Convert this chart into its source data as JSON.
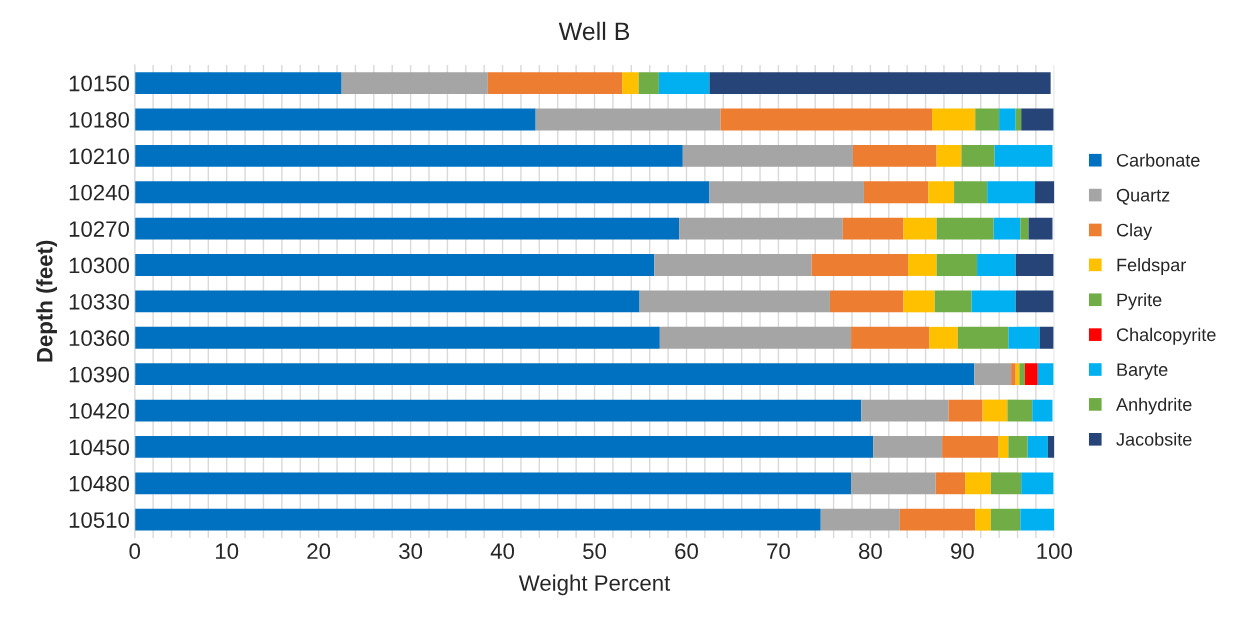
{
  "chart_data": {
    "type": "bar",
    "orientation": "horizontal",
    "stacked": true,
    "title": "Well B",
    "xlabel": "Weight Percent",
    "ylabel": "Depth (feet)",
    "categories": [
      "10150",
      "10180",
      "10210",
      "10240",
      "10270",
      "10300",
      "10330",
      "10360",
      "10390",
      "10420",
      "10450",
      "10480",
      "10510"
    ],
    "series": [
      {
        "name": "Carbonate",
        "color": "#0070c0",
        "values": [
          22.5,
          43.6,
          59.6,
          62.5,
          59.2,
          56.5,
          54.9,
          57.1,
          91.3,
          79.0,
          80.3,
          77.9,
          74.6
        ]
      },
      {
        "name": "Quartz",
        "color": "#a5a5a5",
        "values": [
          15.9,
          20.1,
          18.5,
          16.8,
          17.8,
          17.1,
          20.7,
          20.8,
          4.0,
          9.5,
          7.5,
          9.2,
          8.6
        ]
      },
      {
        "name": "Clay",
        "color": "#ed7d31",
        "values": [
          14.6,
          23.0,
          9.1,
          7.0,
          6.6,
          10.5,
          8.0,
          8.5,
          0.5,
          3.7,
          6.1,
          3.2,
          8.2
        ]
      },
      {
        "name": "Feldspar",
        "color": "#ffc000",
        "values": [
          1.8,
          4.7,
          2.7,
          2.8,
          3.6,
          3.1,
          3.4,
          3.1,
          0.4,
          2.7,
          1.1,
          2.8,
          1.7
        ]
      },
      {
        "name": "Pyrite",
        "color": "#70ad47",
        "values": [
          2.2,
          2.6,
          3.6,
          3.6,
          6.2,
          4.4,
          4.0,
          5.5,
          0.6,
          2.7,
          2.1,
          3.3,
          3.2
        ]
      },
      {
        "name": "Chalcopyrite",
        "color": "#ff0000",
        "values": [
          null,
          null,
          null,
          null,
          null,
          null,
          null,
          null,
          1.4,
          null,
          null,
          null,
          null
        ]
      },
      {
        "name": "Baryte",
        "color": "#00b0f0",
        "values": [
          5.5,
          1.8,
          6.3,
          5.2,
          2.9,
          4.2,
          4.8,
          3.4,
          1.7,
          2.2,
          2.2,
          3.5,
          3.7
        ]
      },
      {
        "name": "Anhydrite",
        "color": "#6fac46",
        "values": [
          null,
          0.6,
          null,
          null,
          0.9,
          null,
          null,
          null,
          null,
          null,
          null,
          null,
          null
        ]
      },
      {
        "name": "Jacobsite",
        "color": "#264478",
        "values": [
          37.1,
          3.5,
          null,
          2.1,
          2.6,
          4.1,
          4.1,
          1.5,
          null,
          null,
          0.7,
          null,
          null
        ]
      }
    ],
    "xlim": [
      0,
      100
    ],
    "xticks": [
      0,
      {
        "value": 2,
        "label": null
      },
      {
        "value": 4,
        "label": null
      },
      {
        "value": 6,
        "label": null
      },
      {
        "value": 8,
        "label": null
      },
      10,
      {
        "value": 12,
        "label": null
      },
      {
        "value": 14,
        "label": null
      },
      {
        "value": 16,
        "label": null
      },
      {
        "value": 18,
        "label": null
      },
      20,
      {
        "value": 22,
        "label": null
      },
      {
        "value": 24,
        "label": null
      },
      {
        "value": 26,
        "label": null
      },
      {
        "value": 28,
        "label": null
      },
      30,
      {
        "value": 32,
        "label": null
      },
      {
        "value": 34,
        "label": null
      },
      {
        "value": 36,
        "label": null
      },
      {
        "value": 38,
        "label": null
      },
      40,
      {
        "value": 42,
        "label": null
      },
      {
        "value": 44,
        "label": null
      },
      {
        "value": 46,
        "label": null
      },
      {
        "value": 48,
        "label": null
      },
      50,
      {
        "value": 52,
        "label": null
      },
      {
        "value": 54,
        "label": null
      },
      {
        "value": 56,
        "label": null
      },
      {
        "value": 58,
        "label": null
      },
      60,
      {
        "value": 62,
        "label": null
      },
      {
        "value": 64,
        "label": null
      },
      {
        "value": 66,
        "label": null
      },
      {
        "value": 68,
        "label": null
      },
      70,
      {
        "value": 72,
        "label": null
      },
      {
        "value": 74,
        "label": null
      },
      {
        "value": 76,
        "label": null
      },
      {
        "value": 78,
        "label": null
      },
      80,
      {
        "value": 82,
        "label": null
      },
      {
        "value": 84,
        "label": null
      },
      {
        "value": 86,
        "label": null
      },
      {
        "value": 88,
        "label": null
      },
      90,
      {
        "value": 92,
        "label": null
      },
      {
        "value": 94,
        "label": null
      },
      {
        "value": 96,
        "label": null
      },
      {
        "value": 98,
        "label": null
      },
      100
    ],
    "grid": "x",
    "legend": "right"
  }
}
